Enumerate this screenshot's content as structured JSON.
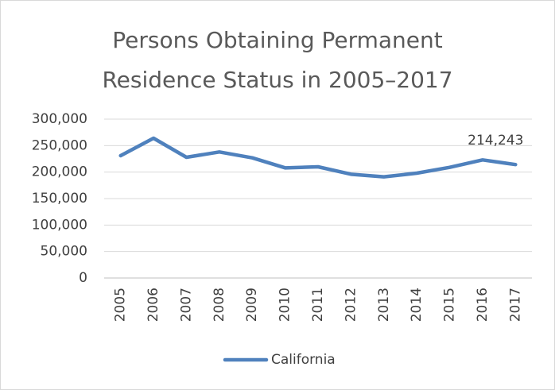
{
  "chart_data": {
    "type": "line",
    "title": "Persons Obtaining Permanent Residence Status in 2005–2017",
    "categories": [
      "2005",
      "2006",
      "2007",
      "2008",
      "2009",
      "2010",
      "2011",
      "2012",
      "2013",
      "2014",
      "2015",
      "2016",
      "2017"
    ],
    "series": [
      {
        "name": "California",
        "color": "#4f81bd",
        "values": [
          231000,
          264000,
          228000,
          238000,
          227000,
          208000,
          210000,
          196000,
          191000,
          198000,
          209000,
          223000,
          214243
        ],
        "value_labels": [
          null,
          null,
          null,
          null,
          null,
          null,
          null,
          null,
          null,
          null,
          null,
          null,
          "214,243"
        ]
      }
    ],
    "ylim": [
      0,
      300000
    ],
    "yticks": [
      0,
      {
        "value": 50000,
        "label": "50,000"
      },
      {
        "value": 100000,
        "label": "100,000"
      },
      {
        "value": 150000,
        "label": "150,000"
      },
      {
        "value": 200000,
        "label": "200,000"
      },
      {
        "value": 250000,
        "label": "250,000"
      },
      {
        "value": 300000,
        "label": "300,000"
      }
    ],
    "grid": true,
    "legend": "bottom"
  }
}
